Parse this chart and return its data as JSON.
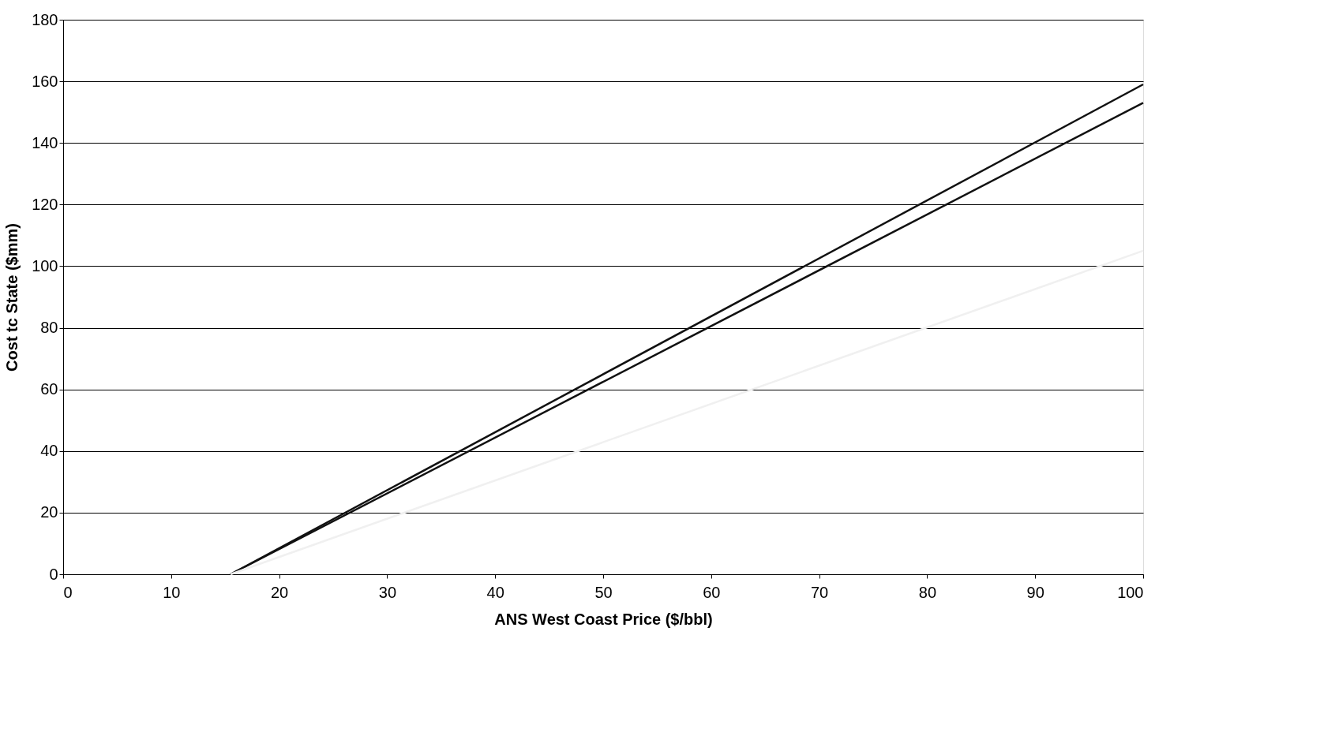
{
  "chart_data": {
    "type": "line",
    "xlabel": "ANS West Coast Price ($/bbl)",
    "ylabel": "Cost tc State ($mm)",
    "x": [
      15.5,
      100
    ],
    "series": [
      {
        "color": "#111111",
        "values": [
          0,
          159
        ]
      },
      {
        "color": "#111111",
        "values": [
          0,
          153
        ]
      },
      {
        "color": "#f0f0f0",
        "values": [
          0,
          105
        ]
      }
    ],
    "xlim": [
      0,
      100
    ],
    "xticks": [
      0,
      10,
      20,
      30,
      40,
      50,
      60,
      70,
      80,
      90,
      100
    ],
    "ylim": [
      0,
      180
    ],
    "yticks": [
      0,
      20,
      40,
      60,
      80,
      100,
      120,
      140,
      160,
      180
    ],
    "grid": "y",
    "legend": false,
    "marker": "none",
    "line_style": "solid"
  }
}
